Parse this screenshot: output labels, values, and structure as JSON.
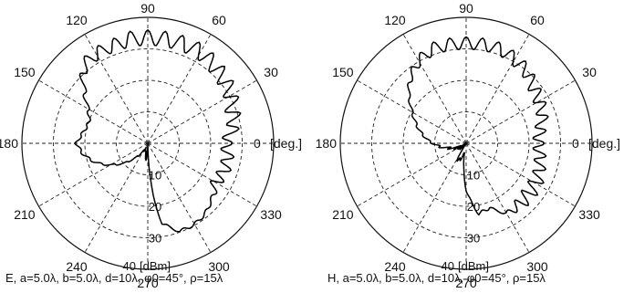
{
  "chart_data": [
    {
      "type": "polar",
      "panel": "E-plane",
      "caption": "E, a=5.0λ, b=5.0λ, d=10λ, φ0=45°, ρ=15λ",
      "angle_unit": "[deg.]",
      "radial_unit": "[dBm]",
      "angle_ticks": [
        "0",
        "30",
        "60",
        "90",
        "120",
        "150",
        "180",
        "210",
        "240",
        "270",
        "300",
        "330"
      ],
      "radial_ticks": [
        "10",
        "20",
        "30",
        "40"
      ],
      "radial_direction": "outer edge = 0 dB, center = -40 dB",
      "grid": true,
      "series": [
        {
          "theta_deg": [
            0,
            15,
            20,
            25,
            30,
            40,
            50,
            60,
            70,
            80,
            90,
            100,
            110,
            120,
            130,
            140,
            150,
            160,
            170,
            180,
            190,
            200,
            210,
            220,
            230,
            240,
            250,
            260,
            264,
            268,
            270,
            272,
            276,
            280,
            290,
            300,
            310,
            320,
            330,
            340,
            350,
            360
          ],
          "level_db": [
            -14,
            -10,
            -10,
            -9,
            -8,
            -7,
            -6,
            -5,
            -5,
            -5,
            -5,
            -5,
            -6,
            -6,
            -7,
            -13,
            -18,
            -20,
            -19,
            -17,
            -19,
            -22,
            -26,
            -30,
            -34,
            -37,
            -38,
            -36,
            -34,
            -38,
            -40,
            -35,
            -23,
            -14,
            -10,
            -10,
            -11,
            -13,
            -14,
            -13,
            -13,
            -14
          ],
          "ripple_db": [
            4,
            5,
            5,
            5,
            5,
            5,
            5,
            5,
            5,
            5,
            5,
            5,
            4,
            4,
            4,
            2,
            1,
            1,
            1,
            1,
            1,
            1,
            1,
            1,
            1,
            1,
            1,
            1,
            1,
            1,
            1,
            1,
            1,
            1,
            1,
            1,
            1,
            1,
            4,
            4,
            4,
            4
          ]
        }
      ]
    },
    {
      "type": "polar",
      "panel": "H-plane",
      "caption": "H, a=5.0λ, b=5.0λ, d=10λ, φ0=45°, ρ=15λ",
      "angle_unit": "[deg.]",
      "radial_unit": "[dBm]",
      "angle_ticks": [
        "0",
        "30",
        "60",
        "90",
        "120",
        "150",
        "180",
        "210",
        "240",
        "270",
        "300",
        "330"
      ],
      "radial_ticks": [
        "10",
        "20",
        "30",
        "40"
      ],
      "radial_direction": "outer edge = 0 dB, center = -40 dB",
      "grid": true,
      "series": [
        {
          "theta_deg": [
            0,
            10,
            20,
            30,
            40,
            50,
            60,
            70,
            80,
            90,
            100,
            110,
            120,
            130,
            140,
            150,
            160,
            170,
            180,
            190,
            200,
            210,
            220,
            230,
            235,
            240,
            250,
            260,
            270,
            280,
            290,
            300,
            310,
            320,
            330,
            340,
            350,
            360
          ],
          "level_db": [
            -16,
            -15,
            -13,
            -12,
            -11,
            -9,
            -8,
            -7,
            -7,
            -7,
            -7,
            -7,
            -9,
            -12,
            -16,
            -20,
            -23,
            -26,
            -29,
            -32,
            -35,
            -37,
            -38,
            -38,
            -40,
            -34,
            -34,
            -37,
            -25,
            -17,
            -18,
            -14,
            -13,
            -13,
            -13,
            -14,
            -15,
            -16
          ],
          "ripple_db": [
            4,
            4,
            4,
            4,
            4,
            4,
            4,
            4,
            4,
            4,
            4,
            4,
            3,
            2,
            1,
            1,
            1,
            1,
            1,
            2,
            3,
            4,
            4,
            4,
            4,
            2,
            1,
            1,
            1,
            1,
            1,
            1,
            4,
            5,
            5,
            4,
            4,
            4
          ]
        }
      ]
    }
  ]
}
